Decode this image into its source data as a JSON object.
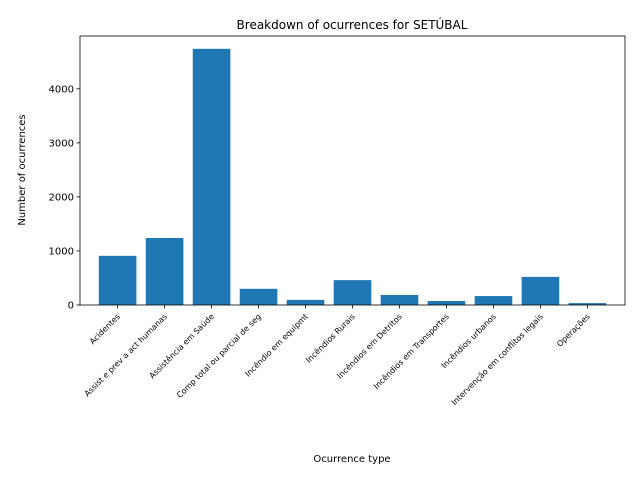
{
  "chart_data": {
    "type": "bar",
    "title": "Breakdown of ocurrences for SETÚBAL",
    "xlabel": "Ocurrence type",
    "ylabel": "Number of ocurrences",
    "categories": [
      "Acidentes",
      "Assist e prev a act humanas",
      "Assistência em Saúde",
      "Comp total ou parcial de seg",
      "Incêndio em equipmt",
      "Incêndios Rurais",
      "Incêndios em Detritos",
      "Incêndios em Transportes",
      "Incêndios urbanos",
      "Intervenção em conflitos legais",
      "Operações"
    ],
    "values": [
      910,
      1240,
      4740,
      300,
      95,
      460,
      185,
      75,
      165,
      520,
      35
    ],
    "ylim": [
      0,
      4977
    ],
    "yticks": [
      0,
      1000,
      2000,
      3000,
      4000
    ],
    "grid": false,
    "bar_color": "#1f77b4"
  }
}
